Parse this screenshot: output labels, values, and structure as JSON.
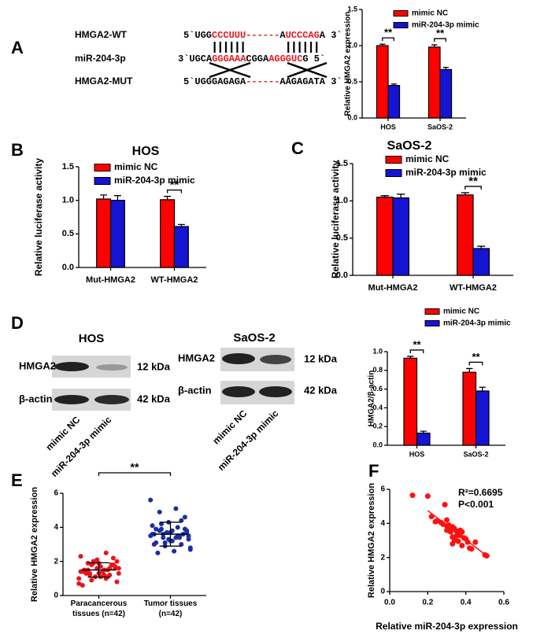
{
  "panel_labels": [
    "A",
    "B",
    "C",
    "D",
    "E",
    "F"
  ],
  "sequences": [
    {
      "label": "HMGA2-WT",
      "parts": [
        {
          "text": "5`UGG",
          "color": "#000000"
        },
        {
          "text": "CCCUUU",
          "color": "#e8141c"
        },
        {
          "text": "------",
          "color": "#e8141c"
        },
        {
          "text": "A",
          "color": "#000000"
        },
        {
          "text": "UCCCAG",
          "color": "#e8141c"
        },
        {
          "text": "A 3`",
          "color": "#000000"
        }
      ]
    },
    {
      "label": "miR-204-3p",
      "parts": [
        {
          "text": "3`UGCA",
          "color": "#000000"
        },
        {
          "text": "GGGAAA",
          "color": "#e8141c"
        },
        {
          "text": "CGGA",
          "color": "#000000"
        },
        {
          "text": "AGGGUC",
          "color": "#e8141c"
        },
        {
          "text": "G 5`",
          "color": "#000000"
        }
      ]
    },
    {
      "label": "HMGA2-MUT",
      "parts": [
        {
          "text": "5`UGGGAGAGA",
          "color": "#000000"
        },
        {
          "text": "------",
          "color": "#e8141c"
        },
        {
          "text": "AAGAGATA 3`",
          "color": "#000000"
        }
      ]
    }
  ],
  "blots": [
    {
      "title": "HOS",
      "rows": [
        {
          "label": "HMGA2",
          "size": "12 kDa"
        },
        {
          "label": "β-actin",
          "size": "42 kDa"
        }
      ],
      "lanes": [
        "mimic NC",
        "miR-204-3p mimic"
      ]
    },
    {
      "title": "SaOS-2",
      "rows": [
        {
          "label": "HMGA2",
          "size": "12 kDa"
        },
        {
          "label": "β-actin",
          "size": "42 kDa"
        }
      ],
      "lanes": [
        "mimic NC",
        "miR-204-3p mimic"
      ]
    }
  ],
  "chart_data": [
    {
      "type": "bar",
      "ylabel": "Relative HMGA2 expression",
      "categories": [
        "HOS",
        "SaOS-2"
      ],
      "series": [
        {
          "name": "mimic NC",
          "color": "#ff0000",
          "values": [
            1.0,
            0.98
          ],
          "errors": [
            0.02,
            0.03
          ]
        },
        {
          "name": "miR-204-3p mimic",
          "color": "#1414d2",
          "values": [
            0.45,
            0.67
          ],
          "errors": [
            0.02,
            0.03
          ]
        }
      ],
      "significance": [
        "**",
        "**"
      ],
      "ylim": [
        0,
        1.5
      ],
      "yticks": [
        {
          "value": 0,
          "label": "0.0"
        },
        0.5,
        {
          "value": 1,
          "label": "1.0"
        },
        1.5
      ]
    },
    {
      "type": "bar",
      "title": "HOS",
      "ylabel": "Relative luciferase activity",
      "categories": [
        "Mut-HMGA2",
        "WT-HMGA2"
      ],
      "series": [
        {
          "name": "mimic NC",
          "color": "#ff0000",
          "values": [
            1.02,
            1.01
          ],
          "errors": [
            0.06,
            0.05
          ]
        },
        {
          "name": "miR-204-3p mimic",
          "color": "#1414d2",
          "values": [
            1.0,
            0.61
          ],
          "errors": [
            0.07,
            0.03
          ]
        }
      ],
      "significance": [
        null,
        "**"
      ],
      "ylim": [
        0,
        1.5
      ],
      "yticks": [
        {
          "value": 0,
          "label": "0.0"
        },
        0.5,
        {
          "value": 1,
          "label": "1.0"
        },
        1.5
      ]
    },
    {
      "type": "bar",
      "title": "SaOS-2",
      "ylabel": "Relative luciferase activity",
      "categories": [
        "Mut-HMGA2",
        "WT-HMGA2"
      ],
      "series": [
        {
          "name": "mimic NC",
          "color": "#ff0000",
          "values": [
            1.05,
            1.08
          ],
          "errors": [
            0.02,
            0.03
          ]
        },
        {
          "name": "miR-204-3p mimic",
          "color": "#1414d2",
          "values": [
            1.04,
            0.36
          ],
          "errors": [
            0.05,
            0.03
          ]
        }
      ],
      "significance": [
        null,
        "**"
      ],
      "ylim": [
        0,
        1.5
      ],
      "yticks": [
        {
          "value": 0,
          "label": "0.0"
        },
        0.5,
        {
          "value": 1,
          "label": "1.0"
        },
        1.5
      ]
    },
    {
      "type": "bar",
      "ylabel": "HMGA2/β-actin",
      "categories": [
        "HOS",
        "SaOS-2"
      ],
      "series": [
        {
          "name": "mimic NC",
          "color": "#ff0000",
          "values": [
            0.93,
            0.78
          ],
          "errors": [
            0.02,
            0.04
          ]
        },
        {
          "name": "miR-204-3p mimic",
          "color": "#1414d2",
          "values": [
            0.13,
            0.58
          ],
          "errors": [
            0.02,
            0.04
          ]
        }
      ],
      "significance": [
        "**",
        "**"
      ],
      "ylim": [
        0,
        1.0
      ],
      "yticks": [
        {
          "value": 0,
          "label": "0.0"
        },
        0.2,
        0.4,
        0.6,
        0.8,
        {
          "value": 1,
          "label": "1.0"
        }
      ]
    },
    {
      "type": "strip",
      "ylabel": "Relative HMGA2 expression",
      "categories": [
        "Paracancerous tissues (n=42)",
        "Tumor tissues (n=42)"
      ],
      "series": [
        {
          "color": "#e8141c",
          "values": [
            1.0,
            1.2,
            1.5,
            1.8,
            2.1,
            2.3,
            2.5,
            1.3,
            1.6,
            1.9,
            1.4,
            1.1,
            0.9,
            0.8,
            1.7,
            1.5,
            1.2,
            2.0,
            1.6,
            1.4,
            1.3,
            1.8,
            1.1,
            0.7,
            1.5,
            1.9,
            2.2,
            1.6,
            1.4,
            1.0,
            1.2,
            1.7,
            1.3,
            0.6,
            1.5,
            1.8,
            2.0,
            1.1,
            1.4,
            1.6,
            1.9,
            1.3
          ],
          "mean": 1.5,
          "sd": 0.42
        },
        {
          "color": "#1a2fa0",
          "values": [
            5.6,
            5.1,
            4.9,
            4.6,
            4.3,
            4.1,
            4.0,
            3.9,
            3.8,
            3.7,
            3.6,
            3.5,
            3.4,
            3.3,
            3.2,
            3.1,
            3.0,
            2.9,
            2.8,
            2.6,
            2.5,
            3.6,
            3.7,
            3.5,
            3.4,
            3.8,
            3.9,
            3.3,
            3.6,
            3.5,
            4.2,
            3.7,
            3.2,
            3.0,
            3.4,
            3.6,
            3.5,
            3.8,
            3.9,
            4.4,
            3.1,
            2.7
          ],
          "mean": 3.6,
          "sd": 0.7
        }
      ],
      "significance": "**",
      "ylim": [
        0,
        6
      ],
      "yticks": [
        0,
        2,
        4,
        6
      ]
    },
    {
      "type": "scatter",
      "xlabel": "Relative miR-204-3p expression",
      "ylabel": "Relative HMGA2 expression",
      "color": "#ff1010",
      "x": [
        0.12,
        0.2,
        0.29,
        0.22,
        0.25,
        0.27,
        0.28,
        0.3,
        0.31,
        0.32,
        0.33,
        0.34,
        0.3,
        0.32,
        0.35,
        0.36,
        0.38,
        0.33,
        0.35,
        0.37,
        0.39,
        0.4,
        0.34,
        0.36,
        0.41,
        0.38,
        0.42,
        0.43,
        0.45,
        0.37,
        0.33,
        0.5,
        0.51,
        0.24,
        0.3
      ],
      "y": [
        5.65,
        5.6,
        5.1,
        4.4,
        4.15,
        4.05,
        3.95,
        3.85,
        3.9,
        3.75,
        3.8,
        3.7,
        3.6,
        3.5,
        3.55,
        3.4,
        3.5,
        3.2,
        3.25,
        3.3,
        3.15,
        3.1,
        3.0,
        2.95,
        2.9,
        2.7,
        2.55,
        2.5,
        2.9,
        3.6,
        2.8,
        2.15,
        2.1,
        4.1,
        4.2
      ],
      "trendline": {
        "x": [
          0.2,
          0.51
        ],
        "y": [
          4.75,
          2.1
        ]
      },
      "annotations": [
        "R²=0.6695",
        "P<0.001"
      ],
      "xlim": [
        0,
        0.6
      ],
      "xticks": [
        {
          "value": 0,
          "label": "0.0"
        },
        0.2,
        0.4,
        0.6
      ],
      "ylim": [
        0,
        6
      ],
      "yticks": [
        0,
        2,
        4,
        6
      ]
    }
  ]
}
